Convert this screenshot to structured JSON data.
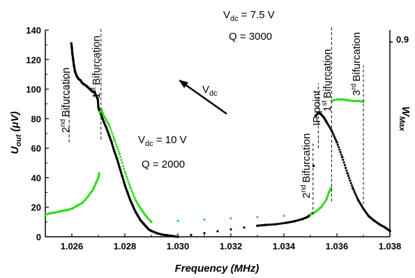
{
  "chart_data": {
    "type": "scatter",
    "xlabel": "Frequency (MHz)",
    "ylabel": "U",
    "ylabel_sub": "out",
    "ylabel_unit": " (μV)",
    "y2label": "W",
    "y2label_sub": "Max",
    "y2_tick_label": "0.9",
    "xlim": [
      1.025,
      1.038
    ],
    "ylim": [
      0,
      140
    ],
    "x_ticks": [
      "1.026",
      "1.028",
      "1.030",
      "1.032",
      "1.034",
      "1.036",
      "1.038"
    ],
    "y_ticks": [
      "0",
      "20",
      "40",
      "60",
      "80",
      "100",
      "120",
      "140"
    ],
    "x_tick_values": [
      1.026,
      1.028,
      1.03,
      1.032,
      1.034,
      1.036,
      1.038
    ],
    "y_tick_values": [
      0,
      20,
      40,
      60,
      80,
      100,
      120,
      140
    ],
    "colors": {
      "black_series": "#000000",
      "green_series": "#33dd22"
    },
    "series": [
      {
        "color": "black",
        "points": [
          [
            1.02598,
            131
          ],
          [
            1.026,
            128
          ],
          [
            1.02602,
            124
          ],
          [
            1.02605,
            120
          ],
          [
            1.02608,
            116
          ],
          [
            1.02612,
            112
          ],
          [
            1.02618,
            109
          ],
          [
            1.02625,
            107
          ],
          [
            1.02632,
            106
          ],
          [
            1.0264,
            104
          ],
          [
            1.02648,
            103
          ],
          [
            1.02656,
            102
          ],
          [
            1.02662,
            101
          ],
          [
            1.02668,
            100
          ],
          [
            1.02674,
            99
          ],
          [
            1.0268,
            98
          ],
          [
            1.02686,
            98
          ],
          [
            1.0269,
            96
          ],
          [
            1.02694,
            95
          ],
          [
            1.02698,
            93
          ],
          [
            1.027,
            88
          ],
          [
            1.02703,
            86
          ],
          [
            1.0271,
            83
          ],
          [
            1.0272,
            78
          ],
          [
            1.0273,
            74
          ],
          [
            1.0274,
            69
          ],
          [
            1.0275,
            64
          ],
          [
            1.0276,
            58
          ],
          [
            1.0277,
            53
          ],
          [
            1.0278,
            47
          ],
          [
            1.0279,
            41
          ],
          [
            1.028,
            35
          ],
          [
            1.0281,
            30
          ],
          [
            1.0282,
            25
          ],
          [
            1.0283,
            21
          ],
          [
            1.0284,
            17
          ],
          [
            1.0285,
            14
          ],
          [
            1.0286,
            11
          ],
          [
            1.0287,
            9
          ],
          [
            1.0288,
            7
          ],
          [
            1.0289,
            5
          ],
          [
            1.029,
            4
          ],
          [
            1.0292,
            2.5
          ],
          [
            1.0294,
            1.5
          ],
          [
            1.0296,
            1
          ],
          [
            1.0298,
            0.5
          ],
          [
            1.03,
            0
          ],
          [
            1.033,
            7.5
          ],
          [
            1.0333,
            8
          ],
          [
            1.0337,
            8.5
          ],
          [
            1.0341,
            9.5
          ],
          [
            1.0344,
            10.5
          ],
          [
            1.0347,
            12
          ],
          [
            1.0349,
            13.5
          ],
          [
            1.035,
            15
          ],
          [
            1.03508,
            16
          ],
          [
            1.03512,
            48
          ],
          [
            1.0352,
            82
          ],
          [
            1.0353,
            84
          ],
          [
            1.0354,
            83
          ],
          [
            1.0355,
            81
          ],
          [
            1.0356,
            78
          ],
          [
            1.0358,
            72
          ],
          [
            1.036,
            64
          ],
          [
            1.0362,
            54
          ],
          [
            1.0364,
            43
          ],
          [
            1.0366,
            33
          ],
          [
            1.0368,
            25
          ],
          [
            1.037,
            19
          ],
          [
            1.0372,
            14
          ],
          [
            1.0374,
            11
          ],
          [
            1.0376,
            8.5
          ],
          [
            1.0378,
            6.5
          ],
          [
            1.038,
            4
          ]
        ]
      },
      {
        "color": "green",
        "points": [
          [
            1.025,
            15
          ],
          [
            1.0252,
            16
          ],
          [
            1.0254,
            16.5
          ],
          [
            1.0256,
            17.5
          ],
          [
            1.0258,
            18
          ],
          [
            1.026,
            19
          ],
          [
            1.0262,
            21
          ],
          [
            1.0264,
            23
          ],
          [
            1.0266,
            27
          ],
          [
            1.0268,
            32
          ],
          [
            1.0269,
            36
          ],
          [
            1.027,
            40
          ],
          [
            1.02703,
            43
          ],
          [
            1.02706,
            84
          ],
          [
            1.02712,
            86
          ],
          [
            1.0272,
            82
          ],
          [
            1.0274,
            76
          ],
          [
            1.0276,
            66
          ],
          [
            1.0278,
            56
          ],
          [
            1.028,
            44
          ],
          [
            1.0282,
            34
          ],
          [
            1.0284,
            25
          ],
          [
            1.0286,
            19
          ],
          [
            1.0288,
            14
          ],
          [
            1.029,
            10
          ],
          [
            1.035,
            15
          ],
          [
            1.0352,
            17
          ],
          [
            1.0354,
            20
          ],
          [
            1.0356,
            25
          ],
          [
            1.0357,
            30
          ],
          [
            1.03578,
            33
          ],
          [
            1.0358,
            92
          ],
          [
            1.036,
            93
          ],
          [
            1.0362,
            93
          ],
          [
            1.0364,
            92.5
          ],
          [
            1.0366,
            92
          ],
          [
            1.0368,
            92
          ],
          [
            1.037,
            91.5
          ]
        ]
      }
    ],
    "bifurcation_lines": [
      {
        "x": 1.0259,
        "label_sup": "nd",
        "y_bottom": 64,
        "y_top": 112
      },
      {
        "x": 1.0271,
        "label_sup": "st",
        "y_bottom": 66,
        "y_top": 142
      },
      {
        "x": 1.0351,
        "label_sup": "nd",
        "y_bottom": 15,
        "y_top": 63
      },
      {
        "x": 1.0353,
        "label_sup": "",
        "y_bottom": 60,
        "y_top": 104
      },
      {
        "x": 1.0358,
        "label_sup": "st",
        "y_bottom": 24,
        "y_top": 142
      },
      {
        "x": 1.037,
        "label_sup": "rd",
        "y_bottom": 22,
        "y_top": 116
      }
    ],
    "texts": {
      "bif_2nd_left": "2",
      "bif_1st_left": "1",
      "bif_2nd_right": "2",
      "bif_1st_right": "1",
      "bif_3rd_right": "3",
      "bif_word": "Bifurcation",
      "ip_point": "IP point",
      "vdc_right_pre": "V",
      "vdc_right_sub": "dc",
      "vdc_right_post": " = 7.5 V",
      "q_right": "Q = 3000",
      "vdc_left_pre": "V",
      "vdc_left_sub": "dc",
      "vdc_left_post": " = 10 V",
      "q_left": "Q = 2000",
      "arrow_v": "V",
      "arrow_sub": "dc"
    }
  }
}
